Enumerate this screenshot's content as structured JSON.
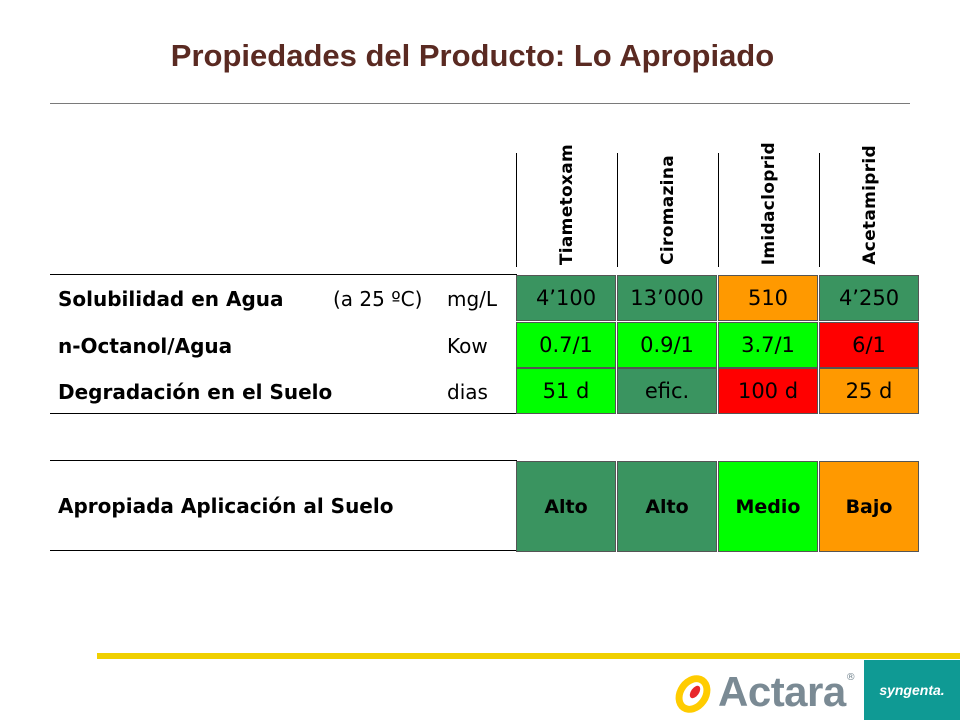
{
  "title": "Propiedades del Producto: Lo Apropiado",
  "columns": [
    "Tiametoxam",
    "Ciromazina",
    "Imidacloprid",
    "Acetamiprid"
  ],
  "rows": [
    {
      "label": "Solubilidad en Agua",
      "condition": "(a 25 ºC)",
      "unit": "mg/L",
      "values": [
        "4’100",
        "13’000",
        "510",
        "4’250"
      ],
      "colors": [
        "#3a9460",
        "#3a9460",
        "#ff9900",
        "#3a9460"
      ]
    },
    {
      "label": "n-Octanol/Agua",
      "condition": "",
      "unit": "Kow",
      "values": [
        "0.7/1",
        "0.9/1",
        "3.7/1",
        "6/1"
      ],
      "colors": [
        "#00ff00",
        "#00ff00",
        "#00ff00",
        "#ff0000"
      ]
    },
    {
      "label": "Degradación en el Suelo",
      "condition": "",
      "unit": "dias",
      "values": [
        "51 d",
        "efic.",
        "100 d",
        "25 d"
      ],
      "colors": [
        "#00ff00",
        "#3a9460",
        "#ff0000",
        "#ff9900"
      ]
    }
  ],
  "summary": {
    "label": "Apropiada Aplicación al Suelo",
    "values": [
      "Alto",
      "Alto",
      "Medio",
      "Bajo"
    ],
    "colors": [
      "#3a9460",
      "#3a9460",
      "#00ff00",
      "#ff9900"
    ]
  },
  "brand": {
    "product": "Actara",
    "product_mark": "®",
    "company": "syngenta."
  }
}
